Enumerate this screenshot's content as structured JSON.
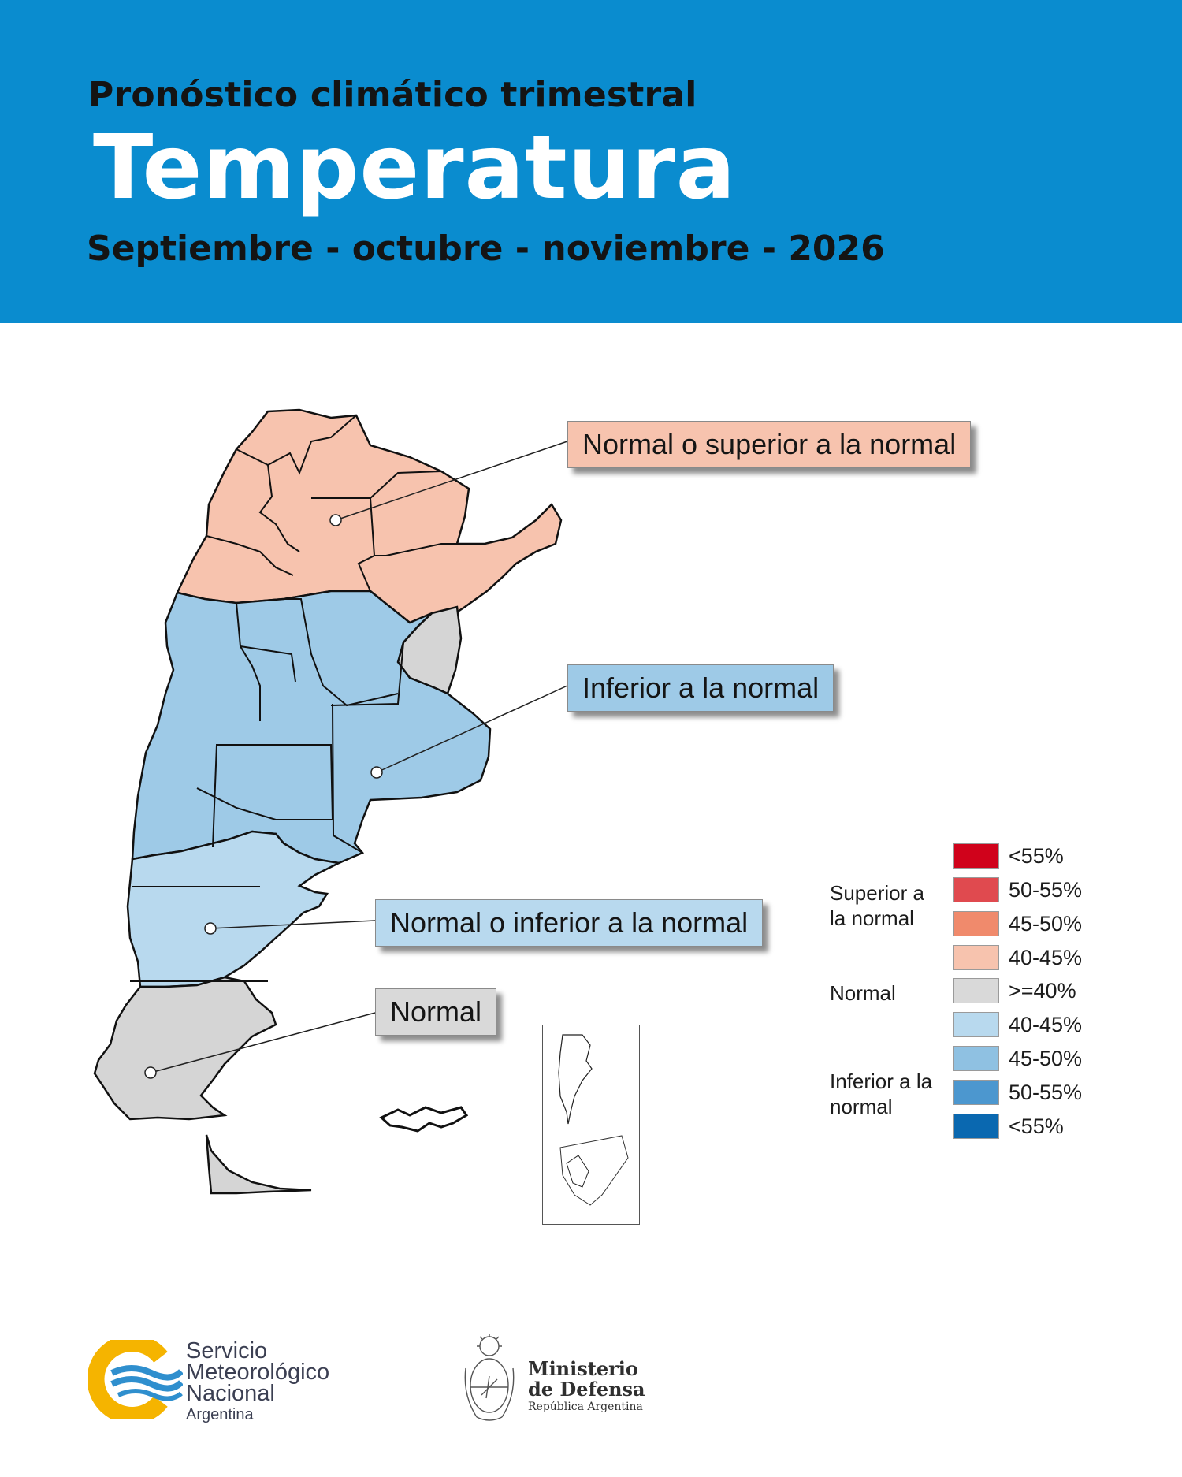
{
  "header": {
    "subtitle": "Pronóstico climático trimestral",
    "title": "Temperatura",
    "period": "Septiembre - octubre - noviembre - 2026"
  },
  "callouts": [
    {
      "id": "superior",
      "label": "Normal o superior a la normal",
      "color": "#f7c3ae"
    },
    {
      "id": "inferior",
      "label": "Inferior a la normal",
      "color": "#9ecae7"
    },
    {
      "id": "normal-inferior",
      "label": "Normal o inferior a la normal",
      "color": "#b8d9ee"
    },
    {
      "id": "normal",
      "label": "Normal",
      "color": "#d9d9d9"
    }
  ],
  "legend": {
    "groups": {
      "superior": "Superior a la normal",
      "normal": "Normal",
      "inferior": "Inferior a la normal"
    },
    "items": [
      {
        "label": "<55%",
        "color": "#d0021b"
      },
      {
        "label": "50-55%",
        "color": "#e04a4f"
      },
      {
        "label": "45-50%",
        "color": "#f08a6c"
      },
      {
        "label": "40-45%",
        "color": "#f7c3ae"
      },
      {
        "label": ">=40%",
        "color": "#d9d9d9"
      },
      {
        "label": "40-45%",
        "color": "#b8d9ee"
      },
      {
        "label": "45-50%",
        "color": "#8fc1e2"
      },
      {
        "label": "50-55%",
        "color": "#4c97cf"
      },
      {
        "label": "<55%",
        "color": "#0a68b0"
      }
    ]
  },
  "logos": {
    "smn": {
      "line1": "Servicio",
      "line2": "Meteorológico",
      "line3": "Nacional",
      "line4": "Argentina"
    },
    "mindef": {
      "line1": "Ministerio",
      "line2": "de Defensa",
      "line3": "República Argentina"
    }
  },
  "colors": {
    "header_bg": "#0a8ccf",
    "region_superior": "#f7c3ae",
    "region_inferior": "#8fc1e2",
    "region_normal_inferior": "#b8d9ee",
    "region_normal": "#d9d9d9"
  }
}
